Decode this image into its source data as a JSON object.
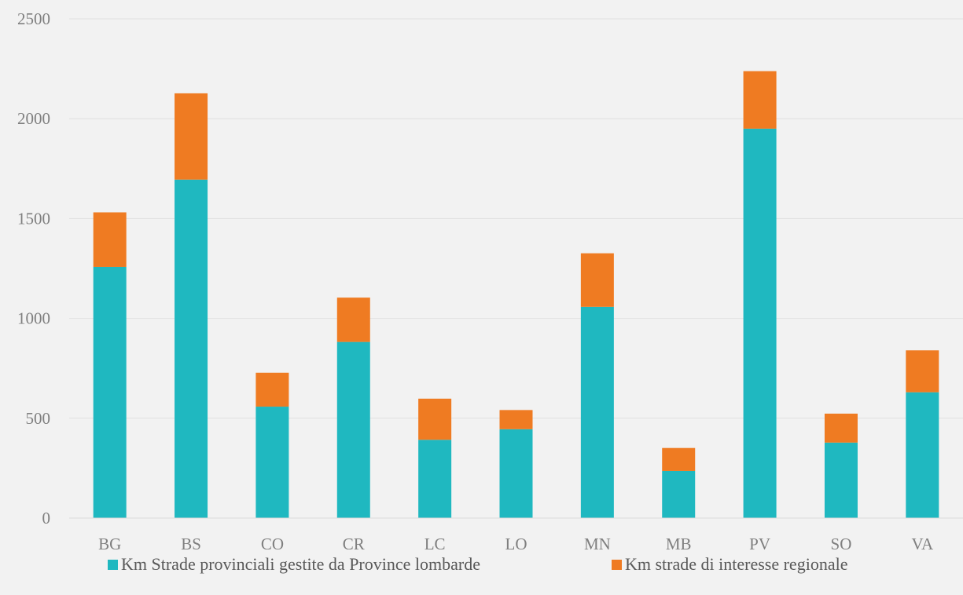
{
  "chart_data": {
    "type": "bar",
    "stacked": true,
    "categories": [
      "BG",
      "BS",
      "CO",
      "CR",
      "LC",
      "LO",
      "MN",
      "MB",
      "PV",
      "SO",
      "VA"
    ],
    "series": [
      {
        "name": "Km Strade provinciali gestite da Province lombarde",
        "color": "#1fb8c0",
        "values": [
          1258,
          1695,
          558,
          882,
          392,
          445,
          1058,
          236,
          1950,
          378,
          630
        ]
      },
      {
        "name": "Km strade di interesse regionale",
        "color": "#ef7b22",
        "values": [
          273,
          432,
          170,
          222,
          206,
          96,
          268,
          115,
          288,
          145,
          210
        ]
      }
    ],
    "y_ticks": [
      "0",
      "500",
      "1000",
      "1500",
      "2000",
      "2500"
    ],
    "ylim": [
      0,
      2500
    ],
    "grid": true,
    "legend_position": "bottom"
  }
}
